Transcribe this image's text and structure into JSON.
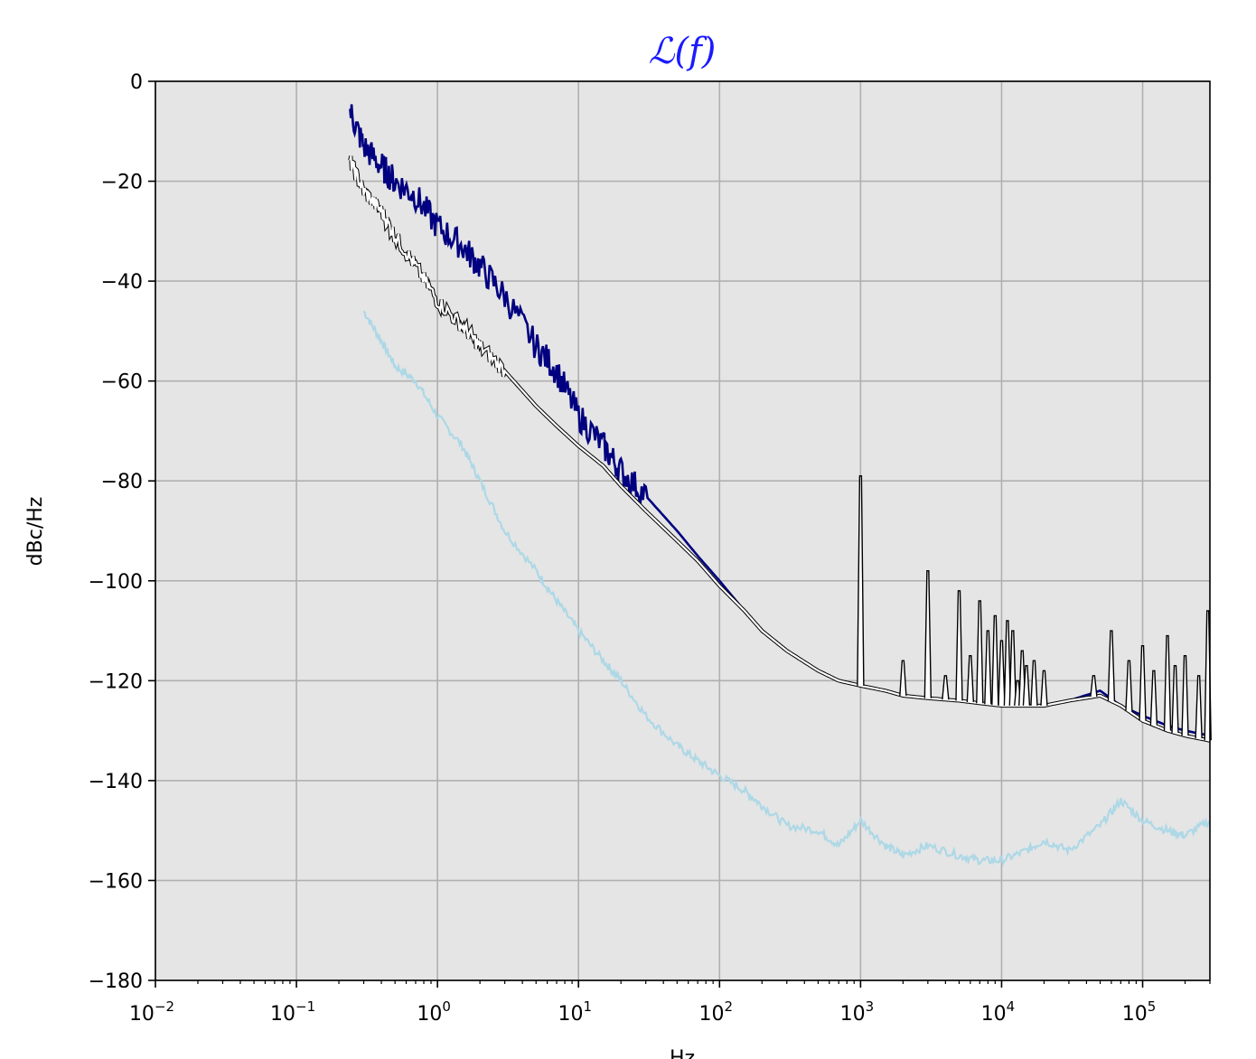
{
  "chart_data": {
    "type": "line",
    "title": "ℒ(f)",
    "xlabel": "Hz",
    "ylabel": "dBc/Hz",
    "x_scale": "log",
    "xlim": [
      0.01,
      300000
    ],
    "ylim": [
      -180,
      0
    ],
    "x_ticks": [
      {
        "value": 0.01,
        "base": "10",
        "exp": "−2"
      },
      {
        "value": 0.1,
        "base": "10",
        "exp": "−1"
      },
      {
        "value": 1,
        "base": "10",
        "exp": "0"
      },
      {
        "value": 10,
        "base": "10",
        "exp": "1"
      },
      {
        "value": 100,
        "base": "10",
        "exp": "2"
      },
      {
        "value": 1000,
        "base": "10",
        "exp": "3"
      },
      {
        "value": 10000,
        "base": "10",
        "exp": "4"
      },
      {
        "value": 100000,
        "base": "10",
        "exp": "5"
      }
    ],
    "y_ticks": [
      {
        "value": 0,
        "label": "0"
      },
      {
        "value": -20,
        "label": "−20"
      },
      {
        "value": -40,
        "label": "−40"
      },
      {
        "value": -60,
        "label": "−60"
      },
      {
        "value": -80,
        "label": "−80"
      },
      {
        "value": -100,
        "label": "−100"
      },
      {
        "value": -120,
        "label": "−120"
      },
      {
        "value": -140,
        "label": "−140"
      },
      {
        "value": -160,
        "label": "−160"
      },
      {
        "value": -180,
        "label": "−180"
      }
    ],
    "grid": true,
    "background": "#e5e5e5",
    "series": [
      {
        "color": "#000080",
        "x": [
          0.24,
          0.3,
          0.4,
          0.5,
          0.7,
          1,
          1.5,
          2,
          3,
          5,
          7,
          10,
          15,
          20,
          30,
          50,
          70,
          100,
          150,
          200,
          300,
          500,
          700,
          1000,
          1500,
          2000,
          3000,
          5000,
          7000,
          10000,
          20000,
          30000,
          50000,
          70000,
          100000,
          150000,
          200000,
          300000
        ],
        "y": [
          -6,
          -13,
          -17,
          -20,
          -23,
          -29,
          -33,
          -37,
          -43,
          -53,
          -58,
          -67,
          -73,
          -78,
          -83,
          -90,
          -95,
          -100,
          -106,
          -110,
          -114,
          -118,
          -120,
          -121,
          -122,
          -123,
          -123.5,
          -124,
          -124.5,
          -125,
          -125,
          -124,
          -122,
          -125,
          -127,
          -129,
          -130,
          -131
        ]
      },
      {
        "color": "#000000",
        "x": [
          0.24,
          0.3,
          0.4,
          0.5,
          0.7,
          1,
          1.5,
          2,
          3,
          5,
          7,
          10,
          15,
          20,
          30,
          50,
          70,
          100,
          150,
          200,
          300,
          500,
          700,
          1000,
          1500,
          2000,
          3000,
          5000,
          7000,
          10000,
          20000,
          30000,
          50000,
          70000,
          100000,
          150000,
          200000,
          300000
        ],
        "y": [
          -16,
          -22,
          -26,
          -31,
          -37,
          -44,
          -49,
          -53,
          -58,
          -65,
          -69,
          -73,
          -77,
          -81,
          -86,
          -92,
          -96,
          -101,
          -106,
          -110,
          -114,
          -118,
          -120,
          -121,
          -122,
          -123,
          -123.5,
          -124,
          -124.5,
          -125,
          -125,
          -124,
          -123,
          -125,
          -128,
          -130,
          -131,
          -132
        ]
      },
      {
        "color": "#add8e6",
        "x": [
          0.3,
          0.4,
          0.5,
          0.7,
          1,
          1.5,
          2,
          3,
          5,
          7,
          10,
          15,
          20,
          30,
          50,
          70,
          100,
          150,
          200,
          300,
          500,
          700,
          1000,
          1500,
          2000,
          3000,
          5000,
          7000,
          10000,
          15000,
          20000,
          30000,
          50000,
          70000,
          100000,
          150000,
          200000,
          300000
        ],
        "y": [
          -46,
          -52,
          -57,
          -60,
          -67,
          -73,
          -80,
          -90,
          -98,
          -104,
          -110,
          -116,
          -120,
          -127,
          -133,
          -136,
          -139,
          -142,
          -145,
          -149,
          -150,
          -153,
          -148,
          -153,
          -155,
          -153,
          -155,
          -156,
          -156,
          -154,
          -152,
          -154,
          -149,
          -144,
          -148,
          -150,
          -151,
          -148
        ]
      }
    ],
    "spurs": [
      {
        "x": 1000,
        "y": -79
      },
      {
        "x": 2000,
        "y": -116
      },
      {
        "x": 3000,
        "y": -98
      },
      {
        "x": 4000,
        "y": -119
      },
      {
        "x": 5000,
        "y": -102
      },
      {
        "x": 6000,
        "y": -115
      },
      {
        "x": 7000,
        "y": -104
      },
      {
        "x": 8000,
        "y": -110
      },
      {
        "x": 9000,
        "y": -107
      },
      {
        "x": 10000,
        "y": -112
      },
      {
        "x": 11000,
        "y": -108
      },
      {
        "x": 12000,
        "y": -110
      },
      {
        "x": 13000,
        "y": -120
      },
      {
        "x": 14000,
        "y": -114
      },
      {
        "x": 15000,
        "y": -117
      },
      {
        "x": 17000,
        "y": -116
      },
      {
        "x": 20000,
        "y": -118
      },
      {
        "x": 45000,
        "y": -119
      },
      {
        "x": 60000,
        "y": -110
      },
      {
        "x": 80000,
        "y": -116
      },
      {
        "x": 100000,
        "y": -113
      },
      {
        "x": 120000,
        "y": -118
      },
      {
        "x": 150000,
        "y": -111
      },
      {
        "x": 170000,
        "y": -117
      },
      {
        "x": 200000,
        "y": -115
      },
      {
        "x": 250000,
        "y": -119
      },
      {
        "x": 290000,
        "y": -106
      }
    ]
  }
}
